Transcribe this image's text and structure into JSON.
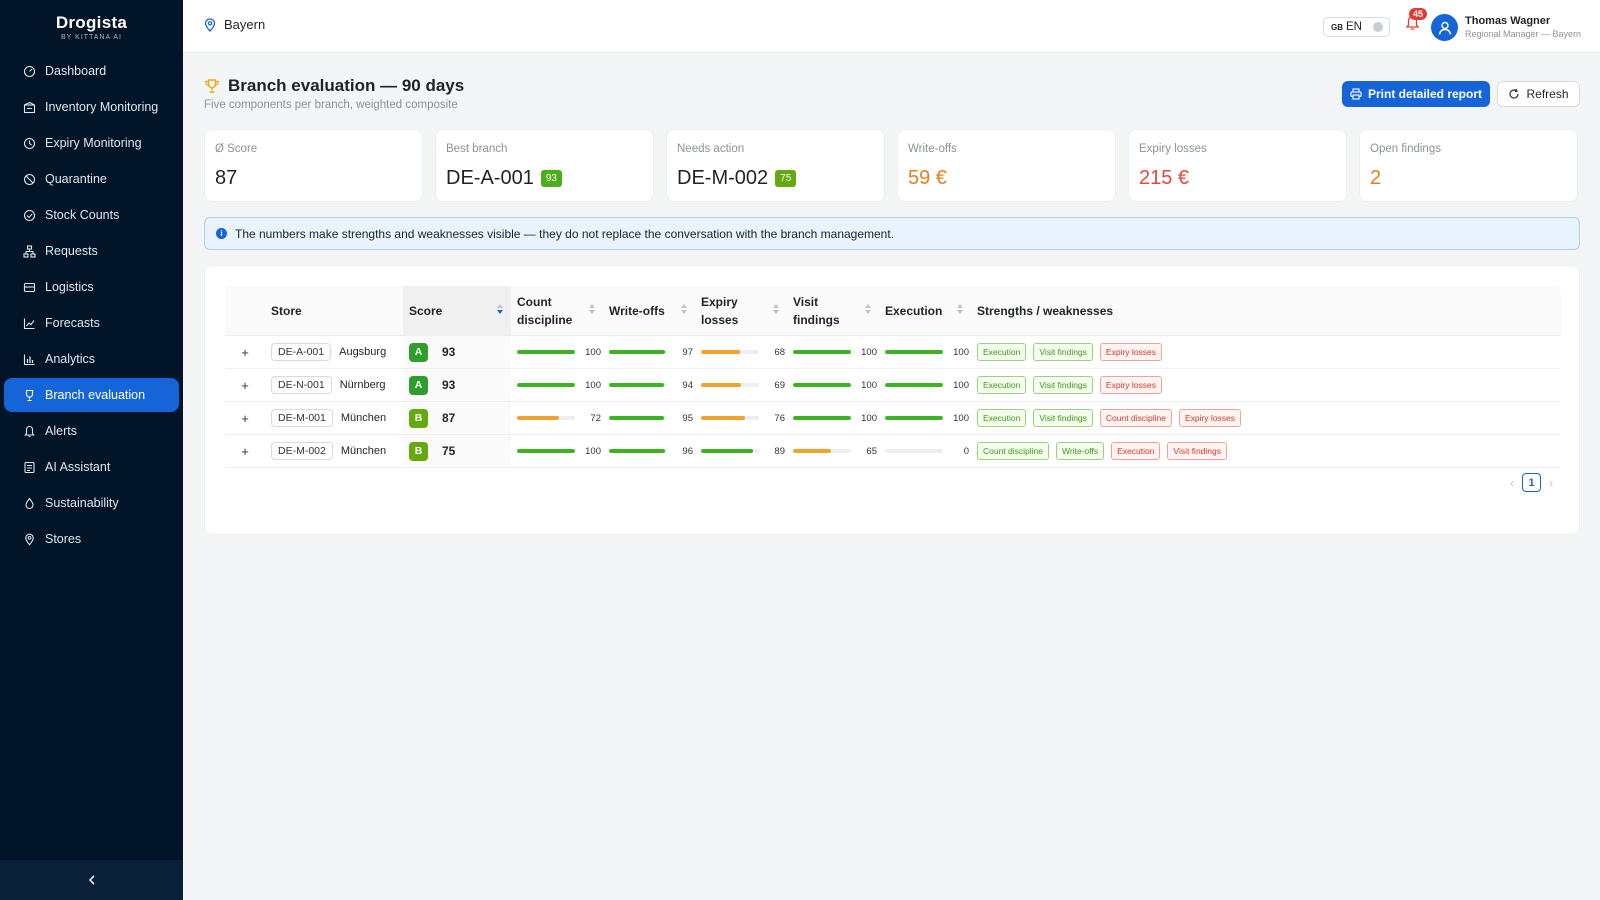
{
  "app": {
    "brand": "Drogista",
    "brand_sub": "BY KITTANA AI"
  },
  "sidebar": {
    "items": [
      {
        "label": "Dashboard",
        "icon": "dashboard-icon"
      },
      {
        "label": "Inventory Monitoring",
        "icon": "inventory-icon"
      },
      {
        "label": "Expiry Monitoring",
        "icon": "clock-icon"
      },
      {
        "label": "Quarantine",
        "icon": "ban-icon"
      },
      {
        "label": "Stock Counts",
        "icon": "check-circle-icon"
      },
      {
        "label": "Requests",
        "icon": "network-icon"
      },
      {
        "label": "Logistics",
        "icon": "truck-icon"
      },
      {
        "label": "Forecasts",
        "icon": "line-chart-icon"
      },
      {
        "label": "Analytics",
        "icon": "bar-chart-icon"
      },
      {
        "label": "Branch evaluation",
        "icon": "trophy-icon",
        "active": true
      },
      {
        "label": "Alerts",
        "icon": "bell-icon"
      },
      {
        "label": "AI Assistant",
        "icon": "robot-icon"
      },
      {
        "label": "Sustainability",
        "icon": "leaf-icon"
      },
      {
        "label": "Stores",
        "icon": "location-pin-icon"
      }
    ]
  },
  "header": {
    "region": "Bayern",
    "lang_country": "GB",
    "lang": "EN",
    "notifications": "45",
    "user_name": "Thomas Wagner",
    "user_role": "Regional Manager — Bayern"
  },
  "page": {
    "title": "Branch evaluation — 90 days",
    "subtitle": "Five components per branch, weighted composite",
    "print_label": "Print detailed report",
    "refresh_label": "Refresh"
  },
  "kpis": [
    {
      "label": "Ø Score",
      "value": "87"
    },
    {
      "label": "Best branch",
      "value": "DE-A-001",
      "badge": "93"
    },
    {
      "label": "Needs action",
      "value": "DE-M-002",
      "badge": "75"
    },
    {
      "label": "Write-offs",
      "value": "59 €"
    },
    {
      "label": "Expiry losses",
      "value": "215 €"
    },
    {
      "label": "Open findings",
      "value": "2"
    }
  ],
  "info": "The numbers make strengths and weaknesses visible — they do not replace the conversation with the branch management.",
  "table": {
    "columns": {
      "store": "Store",
      "score": "Score",
      "count": "Count discipline",
      "writeoffs": "Write-offs",
      "expiry": "Expiry losses",
      "visit": "Visit findings",
      "execution": "Execution",
      "sw": "Strengths / weaknesses"
    },
    "rows": [
      {
        "code": "DE-A-001",
        "city": "Augsburg",
        "grade": "A",
        "score": "93",
        "count": "100",
        "writeoffs": "97",
        "expiry": "68",
        "visit": "100",
        "execution": "100",
        "tags": [
          {
            "t": "Execution",
            "k": "good"
          },
          {
            "t": "Visit findings",
            "k": "good"
          },
          {
            "t": "Expiry losses",
            "k": "bad"
          }
        ]
      },
      {
        "code": "DE-N-001",
        "city": "Nürnberg",
        "grade": "A",
        "score": "93",
        "count": "100",
        "writeoffs": "94",
        "expiry": "69",
        "visit": "100",
        "execution": "100",
        "tags": [
          {
            "t": "Execution",
            "k": "good"
          },
          {
            "t": "Visit findings",
            "k": "good"
          },
          {
            "t": "Expiry losses",
            "k": "bad"
          }
        ]
      },
      {
        "code": "DE-M-001",
        "city": "München",
        "grade": "B",
        "score": "87",
        "count": "72",
        "writeoffs": "95",
        "expiry": "76",
        "visit": "100",
        "execution": "100",
        "tags": [
          {
            "t": "Execution",
            "k": "good"
          },
          {
            "t": "Visit findings",
            "k": "good"
          },
          {
            "t": "Count discipline",
            "k": "bad"
          },
          {
            "t": "Expiry losses",
            "k": "bad"
          }
        ]
      },
      {
        "code": "DE-M-002",
        "city": "München",
        "grade": "B",
        "score": "75",
        "count": "100",
        "writeoffs": "96",
        "expiry": "89",
        "visit": "65",
        "execution": "0",
        "tags": [
          {
            "t": "Count discipline",
            "k": "good"
          },
          {
            "t": "Write-offs",
            "k": "good"
          },
          {
            "t": "Execution",
            "k": "bad"
          },
          {
            "t": "Visit findings",
            "k": "bad"
          }
        ]
      }
    ],
    "expand_symbol": "+"
  },
  "pagination": {
    "current": "1",
    "prev": "‹",
    "next": "›"
  },
  "colors": {
    "accent": "#1565d8",
    "good": "#3cb321",
    "warn": "#f0a42b",
    "sidebar": "#021428"
  }
}
